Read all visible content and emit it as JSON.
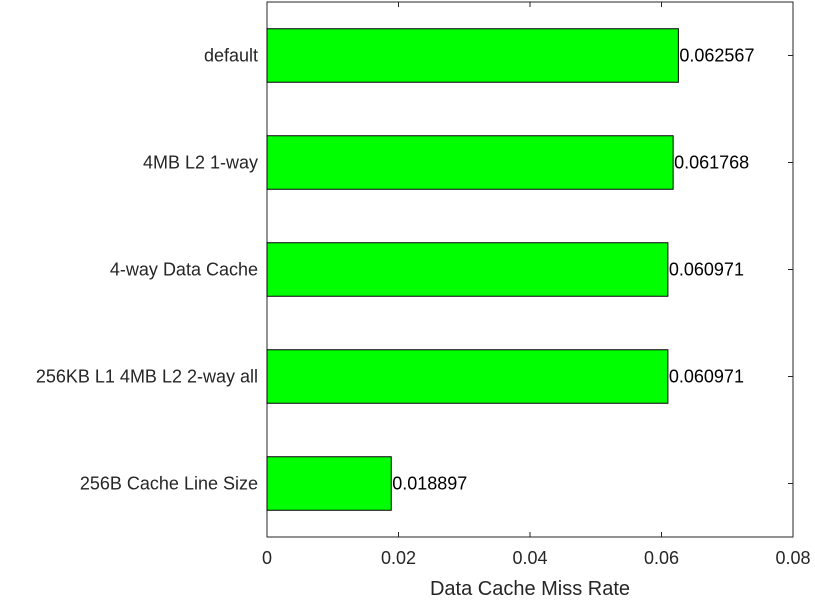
{
  "chart_data": {
    "type": "bar",
    "orientation": "horizontal",
    "categories": [
      "default",
      "4MB L2 1-way",
      "4-way Data Cache",
      "256KB L1 4MB L2 2-way all",
      "256B Cache Line Size"
    ],
    "values": [
      0.062567,
      0.061768,
      0.060971,
      0.060971,
      0.018897
    ],
    "data_labels": [
      "0.062567",
      "0.061768",
      "0.060971",
      "0.060971",
      "0.018897"
    ],
    "title": "",
    "xlabel": "Data Cache Miss Rate",
    "ylabel": "",
    "xlim": [
      0,
      0.08
    ],
    "xticks": [
      0,
      0.02,
      0.04,
      0.06,
      0.08
    ],
    "xtick_labels": [
      "0",
      "0.02",
      "0.04",
      "0.06",
      "0.08"
    ],
    "grid": false,
    "legend": "none",
    "bar_color": "#00ff00",
    "bar_edge_color": "#000000"
  }
}
